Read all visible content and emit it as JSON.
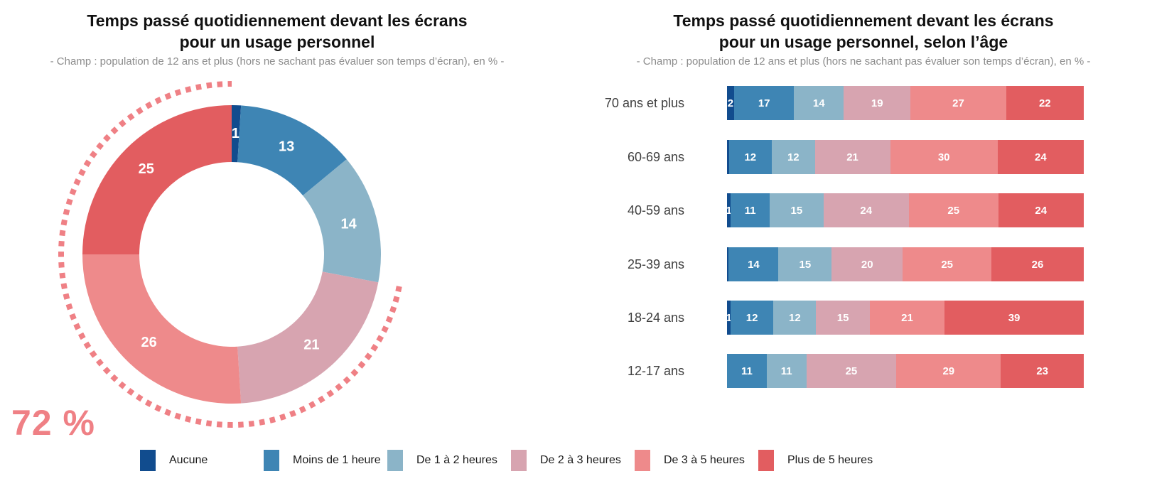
{
  "palette": {
    "aucune": "#114c8e",
    "moins_1h": "#3e85b4",
    "de_1_2h": "#8bb4c8",
    "de_2_3h": "#d7a4b0",
    "de_3_5h": "#ee8a8b",
    "plus_5h": "#e25d60",
    "accent": "#ef8085",
    "label_text": "#ffffff",
    "axis_text": "#3f3f3f"
  },
  "donut_chart": {
    "title_line1": "Temps passé quotidiennement devant les écrans",
    "title_line2": "pour un usage personnel",
    "subtitle": "- Champ : population de 12 ans et plus (hors ne sachant pas évaluer son temps d’écran), en % -",
    "highlight_label": "72 %"
  },
  "bar_chart": {
    "title_line1": "Temps passé quotidiennement devant les écrans",
    "title_line2": "pour un usage personnel, selon l’âge",
    "subtitle": "- Champ : population de 12 ans et plus (hors ne sachant pas évaluer son temps d’écran), en % -"
  },
  "legend": {
    "items": [
      {
        "label": "Aucune",
        "color_key": "aucune"
      },
      {
        "label": "Moins de 1 heure",
        "color_key": "moins_1h"
      },
      {
        "label": "De 1 à 2 heures",
        "color_key": "de_1_2h"
      },
      {
        "label": "De 2 à 3 heures",
        "color_key": "de_2_3h"
      },
      {
        "label": "De 3 à 5 heures",
        "color_key": "de_3_5h"
      },
      {
        "label": "Plus de 5 heures",
        "color_key": "plus_5h"
      }
    ]
  },
  "chart_data": [
    {
      "type": "pie",
      "donut": true,
      "title": "Temps passé quotidiennement devant les écrans pour un usage personnel",
      "subtitle": "- Champ : population de 12 ans et plus (hors ne sachant pas évaluer son temps d’écran), en % -",
      "start_angle": "top",
      "direction": "clockwise",
      "segments": [
        {
          "name": "Aucune",
          "value": 1,
          "label": "1",
          "color_key": "aucune"
        },
        {
          "name": "Moins de 1 heure",
          "value": 13,
          "label": "13",
          "color_key": "moins_1h"
        },
        {
          "name": "De 1 à 2 heures",
          "value": 14,
          "label": "14",
          "color_key": "de_1_2h"
        },
        {
          "name": "De 2 à 3 heures",
          "value": 21,
          "label": "21",
          "color_key": "de_2_3h"
        },
        {
          "name": "De 3 à 5 heures",
          "value": 26,
          "label": "26",
          "color_key": "de_3_5h"
        },
        {
          "name": "Plus de 5 heures",
          "value": 25,
          "label": "25",
          "color_key": "plus_5h"
        }
      ],
      "annotation": {
        "text": "72 %",
        "meaning": "De 2 à 3 heures + De 3 à 5 heures + Plus de 5 heures",
        "arc_from_pct": 28,
        "arc_to_pct": 100
      },
      "legend_position": "bottom"
    },
    {
      "type": "bar",
      "orientation": "horizontal",
      "stacked": true,
      "title": "Temps passé quotidiennement devant les écrans pour un usage personnel, selon l’âge",
      "subtitle": "- Champ : population de 12 ans et plus (hors ne sachant pas évaluer son temps d’écran), en % -",
      "categories": [
        "70 ans et plus",
        "60-69 ans",
        "40-59 ans",
        "25-39 ans",
        "18-24 ans",
        "12-17 ans"
      ],
      "rows": [
        {
          "category": "70 ans et plus",
          "segments": [
            {
              "name": "Aucune",
              "value": 2,
              "label": "2",
              "color_key": "aucune"
            },
            {
              "name": "Moins de 1 heure",
              "value": 17,
              "label": "17",
              "color_key": "moins_1h"
            },
            {
              "name": "De 1 à 2 heures",
              "value": 14,
              "label": "14",
              "color_key": "de_1_2h"
            },
            {
              "name": "De 2 à 3 heures",
              "value": 19,
              "label": "19",
              "color_key": "de_2_3h"
            },
            {
              "name": "De 3 à 5 heures",
              "value": 27,
              "label": "27",
              "color_key": "de_3_5h"
            },
            {
              "name": "Plus de 5 heures",
              "value": 22,
              "label": "22",
              "color_key": "plus_5h"
            }
          ]
        },
        {
          "category": "60-69 ans",
          "segments": [
            {
              "name": "Aucune",
              "value": 0.5,
              "label": "",
              "color_key": "aucune"
            },
            {
              "name": "Moins de 1 heure",
              "value": 12,
              "label": "12",
              "color_key": "moins_1h"
            },
            {
              "name": "De 1 à 2 heures",
              "value": 12,
              "label": "12",
              "color_key": "de_1_2h"
            },
            {
              "name": "De 2 à 3 heures",
              "value": 21,
              "label": "21",
              "color_key": "de_2_3h"
            },
            {
              "name": "De 3 à 5 heures",
              "value": 30,
              "label": "30",
              "color_key": "de_3_5h"
            },
            {
              "name": "Plus de 5 heures",
              "value": 24,
              "label": "24",
              "color_key": "plus_5h"
            }
          ]
        },
        {
          "category": "40-59 ans",
          "segments": [
            {
              "name": "Aucune",
              "value": 1,
              "label": "1",
              "color_key": "aucune"
            },
            {
              "name": "Moins de 1 heure",
              "value": 11,
              "label": "11",
              "color_key": "moins_1h"
            },
            {
              "name": "De 1 à 2 heures",
              "value": 15,
              "label": "15",
              "color_key": "de_1_2h"
            },
            {
              "name": "De 2 à 3 heures",
              "value": 24,
              "label": "24",
              "color_key": "de_2_3h"
            },
            {
              "name": "De 3 à 5 heures",
              "value": 25,
              "label": "25",
              "color_key": "de_3_5h"
            },
            {
              "name": "Plus de 5 heures",
              "value": 24,
              "label": "24",
              "color_key": "plus_5h"
            }
          ]
        },
        {
          "category": "25-39 ans",
          "segments": [
            {
              "name": "Aucune",
              "value": 0.5,
              "label": "",
              "color_key": "aucune"
            },
            {
              "name": "Moins de 1 heure",
              "value": 14,
              "label": "14",
              "color_key": "moins_1h"
            },
            {
              "name": "De 1 à 2 heures",
              "value": 15,
              "label": "15",
              "color_key": "de_1_2h"
            },
            {
              "name": "De 2 à 3 heures",
              "value": 20,
              "label": "20",
              "color_key": "de_2_3h"
            },
            {
              "name": "De 3 à 5 heures",
              "value": 25,
              "label": "25",
              "color_key": "de_3_5h"
            },
            {
              "name": "Plus de 5 heures",
              "value": 26,
              "label": "26",
              "color_key": "plus_5h"
            }
          ]
        },
        {
          "category": "18-24 ans",
          "segments": [
            {
              "name": "Aucune",
              "value": 1,
              "label": "1",
              "color_key": "aucune"
            },
            {
              "name": "Moins de 1 heure",
              "value": 12,
              "label": "12",
              "color_key": "moins_1h"
            },
            {
              "name": "De 1 à 2 heures",
              "value": 12,
              "label": "12",
              "color_key": "de_1_2h"
            },
            {
              "name": "De 2 à 3 heures",
              "value": 15,
              "label": "15",
              "color_key": "de_2_3h"
            },
            {
              "name": "De 3 à 5 heures",
              "value": 21,
              "label": "21",
              "color_key": "de_3_5h"
            },
            {
              "name": "Plus de 5 heures",
              "value": 39,
              "label": "39",
              "color_key": "plus_5h"
            }
          ]
        },
        {
          "category": "12-17 ans",
          "segments": [
            {
              "name": "Aucune",
              "value": 0,
              "label": "",
              "color_key": "aucune"
            },
            {
              "name": "Moins de 1 heure",
              "value": 11,
              "label": "11",
              "color_key": "moins_1h"
            },
            {
              "name": "De 1 à 2 heures",
              "value": 11,
              "label": "11",
              "color_key": "de_1_2h"
            },
            {
              "name": "De 2 à 3 heures",
              "value": 25,
              "label": "25",
              "color_key": "de_2_3h"
            },
            {
              "name": "De 3 à 5 heures",
              "value": 29,
              "label": "29",
              "color_key": "de_3_5h"
            },
            {
              "name": "Plus de 5 heures",
              "value": 23,
              "label": "23",
              "color_key": "plus_5h"
            }
          ]
        }
      ],
      "legend_position": "bottom"
    }
  ]
}
